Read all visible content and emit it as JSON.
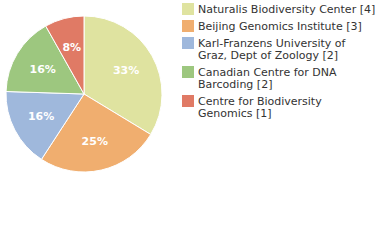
{
  "chart_data": {
    "type": "pie",
    "categories": [
      "Naturalis Biodiversity Center [4]",
      "Beijing Genomics Institute [3]",
      "Karl-Franzens University of Graz, Dept of Zoology [2]",
      "Canadian Centre for DNA Barcoding [2]",
      "Centre for Biodiversity Genomics [1]"
    ],
    "values": [
      33,
      25,
      16,
      16,
      8
    ],
    "value_labels": [
      "33%",
      "25%",
      "16%",
      "16%",
      "8%"
    ],
    "colors": [
      "#dfe3a0",
      "#f0ae6f",
      "#9fb8dc",
      "#9dc77f",
      "#e07a65"
    ],
    "data_labels": true,
    "legend": "top-right"
  }
}
